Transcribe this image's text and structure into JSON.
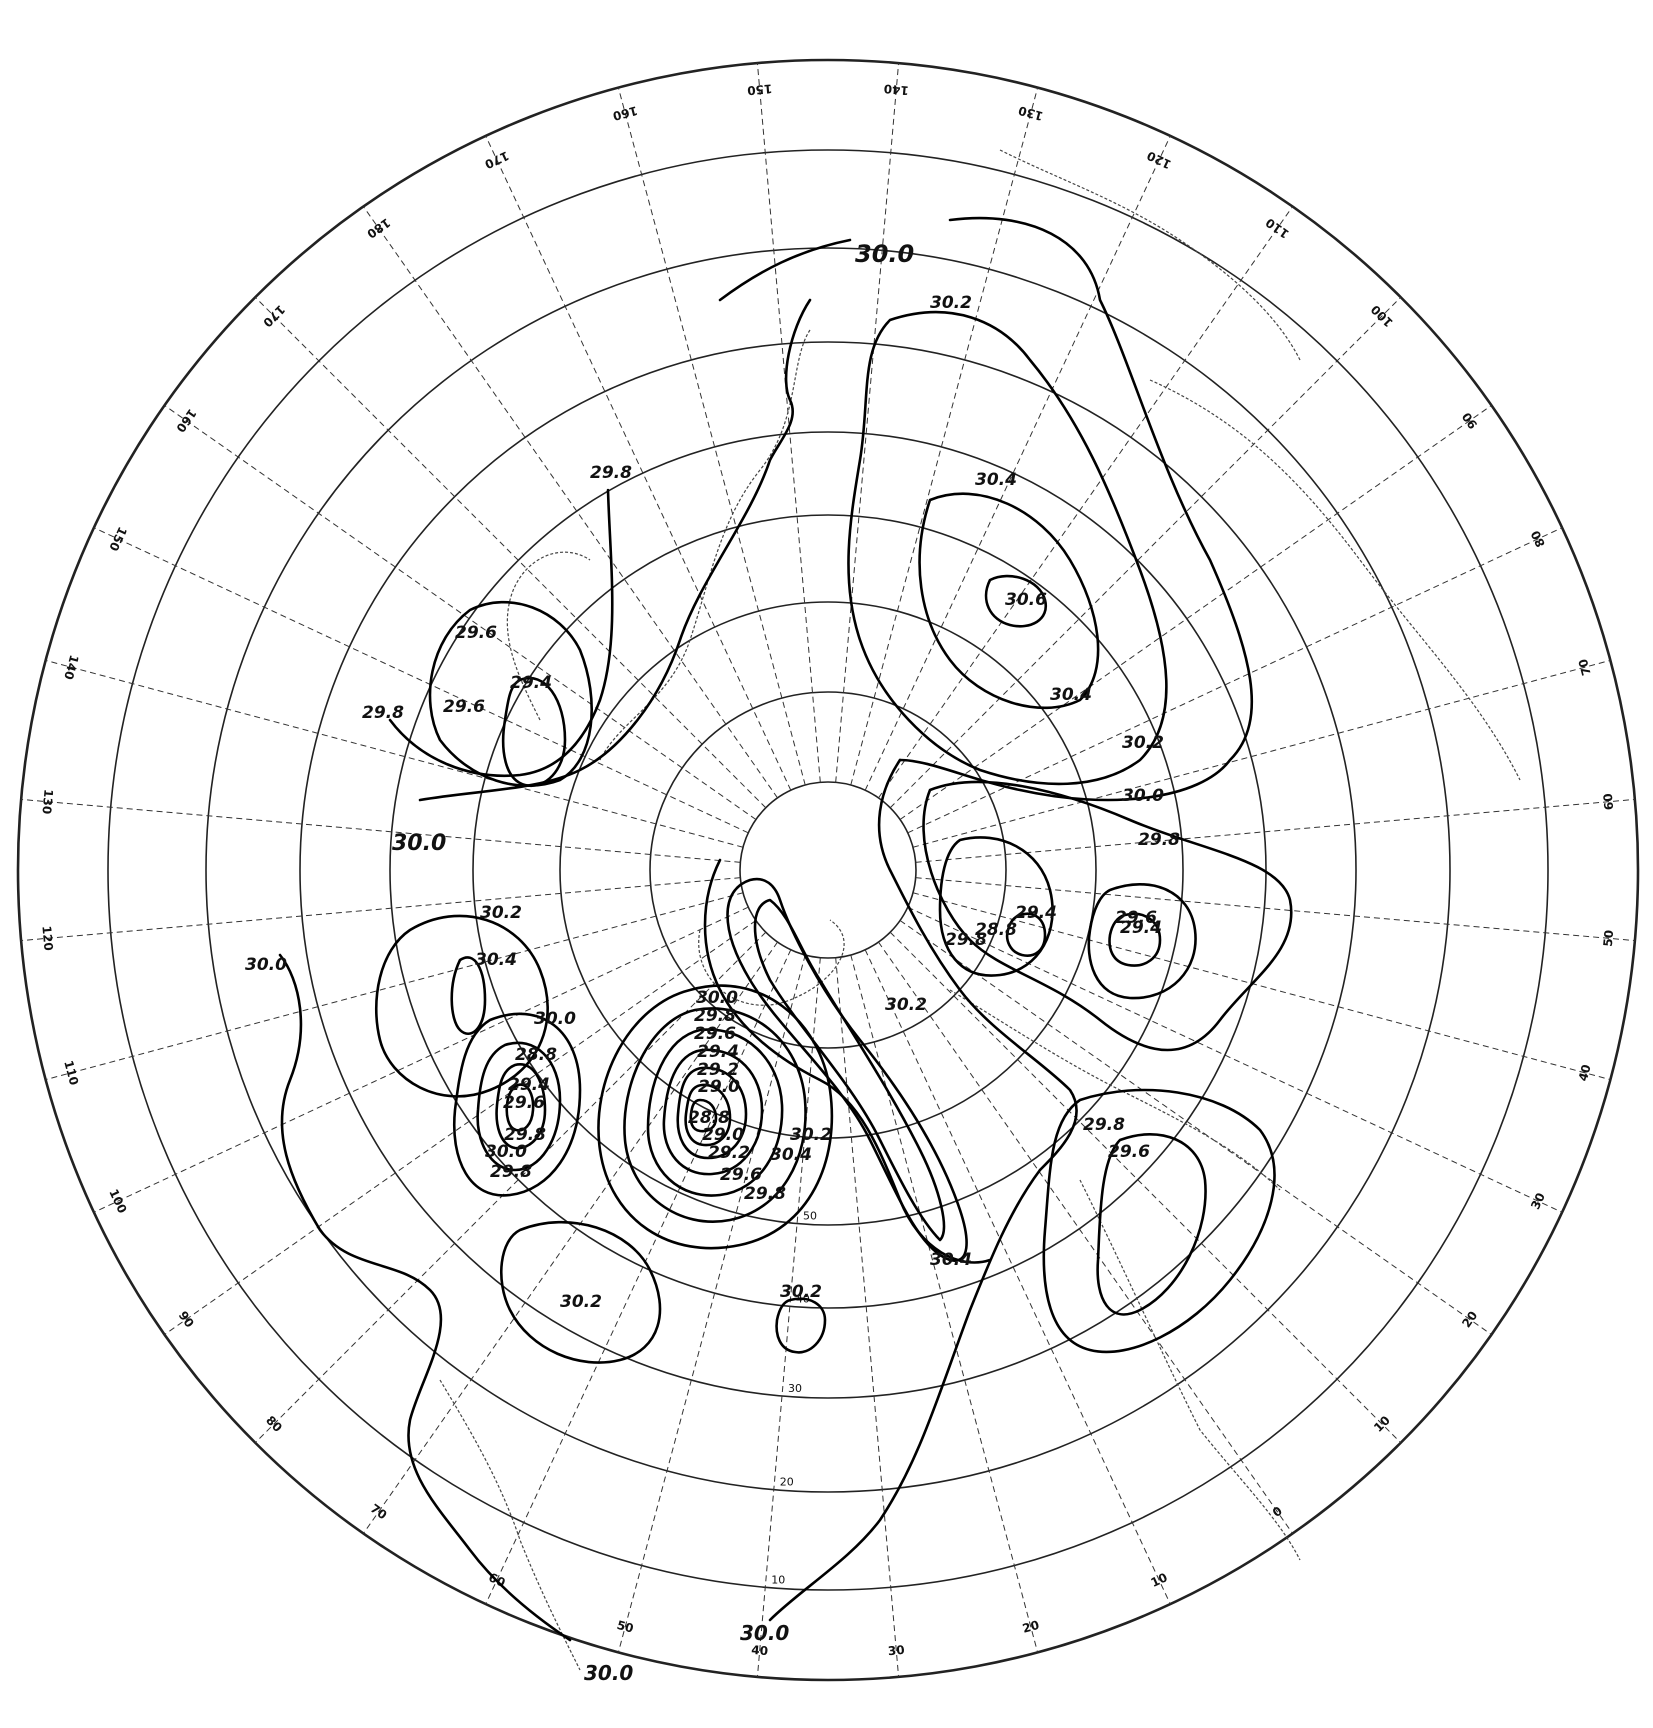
{
  "map": {
    "projection": "north polar stereographic",
    "longitude_labels": [
      "0",
      "10",
      "20",
      "30",
      "40",
      "50",
      "60",
      "70",
      "80",
      "90",
      "100",
      "110",
      "120",
      "130",
      "140",
      "150",
      "160",
      "170",
      "180",
      "170",
      "160",
      "150",
      "140",
      "130",
      "120",
      "110",
      "100",
      "90",
      "80",
      "70",
      "60",
      "50",
      "40",
      "30",
      "20",
      "10"
    ],
    "latitude_labels": [
      "50",
      "40",
      "30",
      "20",
      "10"
    ],
    "isobar_labels": [
      "30.0",
      "30.0",
      "30.0",
      "30.0",
      "30.0",
      "30.0",
      "30.0",
      "30.0",
      "30.0",
      "30.2",
      "30.2",
      "30.2",
      "30.2",
      "30.2",
      "30.2",
      "30.2",
      "30.4",
      "30.4",
      "30.4",
      "30.4",
      "30.4",
      "30.6",
      "29.8",
      "29.8",
      "29.8",
      "29.8",
      "29.8",
      "29.8",
      "29.8",
      "29.8",
      "29.8",
      "29.6",
      "29.6",
      "29.6",
      "29.6",
      "29.6",
      "29.6",
      "29.6",
      "29.4",
      "29.4",
      "29.4",
      "29.4",
      "29.4",
      "29.2",
      "29.0",
      "28.8",
      "28.8",
      "28.8",
      "29.0",
      "29.2"
    ]
  }
}
